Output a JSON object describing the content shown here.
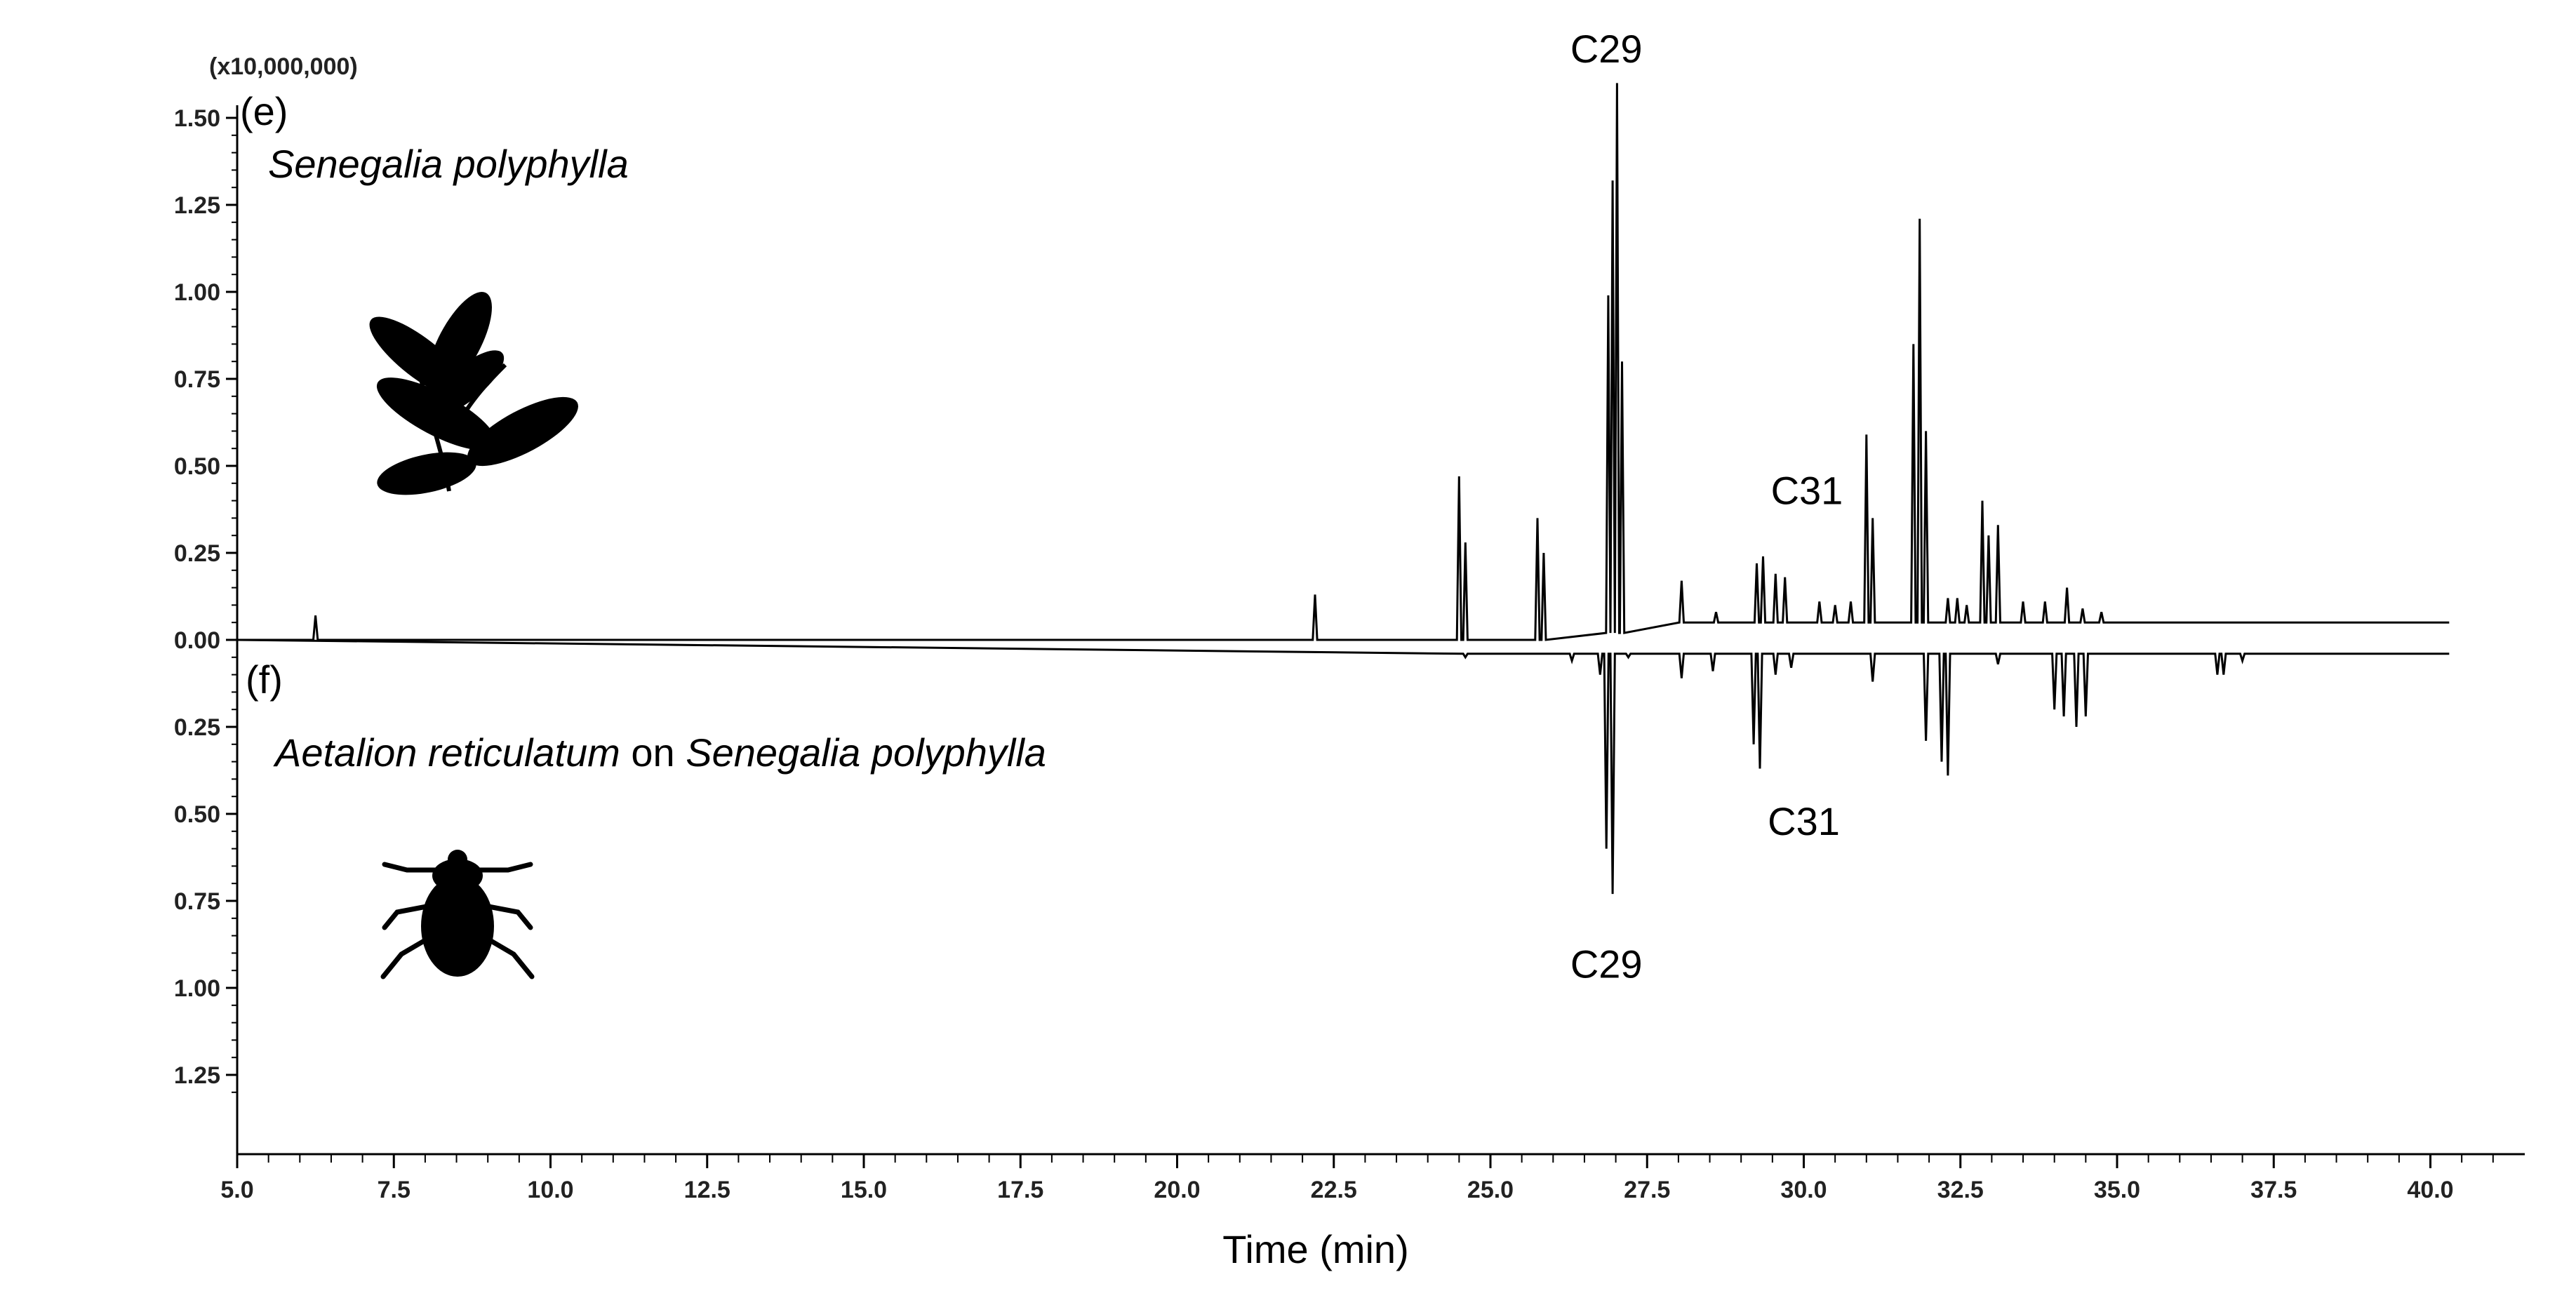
{
  "chart_data": {
    "type": "line",
    "subtype": "mirrored chromatogram",
    "xlabel": "Time (min)",
    "xlim": [
      5.0,
      41.5
    ],
    "x_ticks": [
      "5.0",
      "7.5",
      "10.0",
      "12.5",
      "15.0",
      "17.5",
      "20.0",
      "22.5",
      "25.0",
      "27.5",
      "30.0",
      "32.5",
      "35.0",
      "37.5",
      "40.0"
    ],
    "y_scale_label": "(x10,000,000)",
    "ylim": [
      -1.35,
      1.6
    ],
    "y_ticks_top": [
      "0.00",
      "0.25",
      "0.50",
      "0.75",
      "1.00",
      "1.25",
      "1.50"
    ],
    "y_ticks_bottom": [
      "0.25",
      "0.50",
      "0.75",
      "1.00",
      "1.25"
    ],
    "grid": false,
    "panels": [
      {
        "id": "e",
        "tag": "(e)",
        "title_parts": [
          {
            "text": "Senegalia polyphylla",
            "italic": true
          }
        ],
        "direction": "up",
        "icon": "leaf-silhouette-icon",
        "annotations": [
          {
            "label": "C29",
            "x": 26.9,
            "y": 1.6
          },
          {
            "label": "C31",
            "x": 30.3,
            "y": 0.5
          }
        ],
        "peaks": [
          {
            "x": 6.25,
            "y": 0.07
          },
          {
            "x": 22.2,
            "y": 0.13
          },
          {
            "x": 24.5,
            "y": 0.47
          },
          {
            "x": 24.6,
            "y": 0.28
          },
          {
            "x": 25.75,
            "y": 0.35
          },
          {
            "x": 25.85,
            "y": 0.25
          },
          {
            "x": 26.88,
            "y": 0.99
          },
          {
            "x": 26.95,
            "y": 1.32
          },
          {
            "x": 27.02,
            "y": 1.6
          },
          {
            "x": 27.1,
            "y": 0.8
          },
          {
            "x": 28.05,
            "y": 0.17
          },
          {
            "x": 28.6,
            "y": 0.08
          },
          {
            "x": 29.25,
            "y": 0.22
          },
          {
            "x": 29.35,
            "y": 0.24
          },
          {
            "x": 29.55,
            "y": 0.19
          },
          {
            "x": 29.7,
            "y": 0.18
          },
          {
            "x": 30.25,
            "y": 0.11
          },
          {
            "x": 30.5,
            "y": 0.1
          },
          {
            "x": 30.75,
            "y": 0.11
          },
          {
            "x": 31.0,
            "y": 0.59
          },
          {
            "x": 31.1,
            "y": 0.35
          },
          {
            "x": 31.75,
            "y": 0.85
          },
          {
            "x": 31.85,
            "y": 1.21
          },
          {
            "x": 31.95,
            "y": 0.6
          },
          {
            "x": 32.3,
            "y": 0.12
          },
          {
            "x": 32.45,
            "y": 0.12
          },
          {
            "x": 32.6,
            "y": 0.1
          },
          {
            "x": 32.85,
            "y": 0.4
          },
          {
            "x": 32.95,
            "y": 0.3
          },
          {
            "x": 33.1,
            "y": 0.33
          },
          {
            "x": 33.5,
            "y": 0.11
          },
          {
            "x": 33.85,
            "y": 0.11
          },
          {
            "x": 34.2,
            "y": 0.15
          },
          {
            "x": 34.45,
            "y": 0.09
          },
          {
            "x": 34.75,
            "y": 0.08
          }
        ]
      },
      {
        "id": "f",
        "tag": "(f)",
        "title_parts": [
          {
            "text": "Aetalion reticulatum",
            "italic": true
          },
          {
            "text": " on ",
            "italic": false
          },
          {
            "text": "Senegalia polyphylla",
            "italic": true
          }
        ],
        "direction": "down",
        "icon": "insect-silhouette-icon",
        "annotations": [
          {
            "label": "C31",
            "x": 30.3,
            "y": -0.45
          },
          {
            "label": "C29",
            "x": 26.9,
            "y": -0.85
          }
        ],
        "peaks": [
          {
            "x": 24.6,
            "y": -0.05
          },
          {
            "x": 26.3,
            "y": -0.06
          },
          {
            "x": 26.75,
            "y": -0.1
          },
          {
            "x": 26.85,
            "y": -0.6
          },
          {
            "x": 26.95,
            "y": -0.73
          },
          {
            "x": 27.2,
            "y": -0.05
          },
          {
            "x": 28.05,
            "y": -0.11
          },
          {
            "x": 28.55,
            "y": -0.09
          },
          {
            "x": 29.2,
            "y": -0.3
          },
          {
            "x": 29.3,
            "y": -0.37
          },
          {
            "x": 29.55,
            "y": -0.1
          },
          {
            "x": 29.8,
            "y": -0.08
          },
          {
            "x": 31.1,
            "y": -0.12
          },
          {
            "x": 31.95,
            "y": -0.29
          },
          {
            "x": 32.2,
            "y": -0.35
          },
          {
            "x": 32.3,
            "y": -0.39
          },
          {
            "x": 33.1,
            "y": -0.07
          },
          {
            "x": 34.0,
            "y": -0.2
          },
          {
            "x": 34.15,
            "y": -0.22
          },
          {
            "x": 34.35,
            "y": -0.25
          },
          {
            "x": 34.5,
            "y": -0.22
          },
          {
            "x": 36.6,
            "y": -0.1
          },
          {
            "x": 36.7,
            "y": -0.1
          },
          {
            "x": 37.0,
            "y": -0.06
          }
        ]
      }
    ]
  }
}
